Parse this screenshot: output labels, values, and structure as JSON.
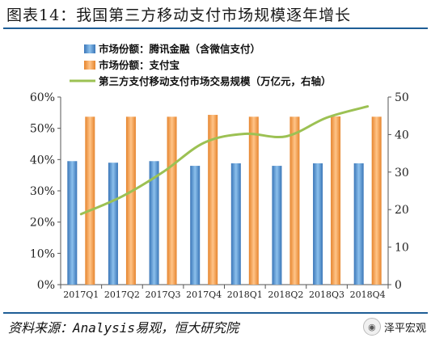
{
  "figure_title": "图表14：我国第三方移动支付市场规模逐年增长",
  "source": "资料来源：Analysis易观，恒大研究院",
  "watermark": {
    "text": "泽平宏观",
    "icon": "wechat-icon"
  },
  "colors": {
    "tenpay": "#4f8fd0",
    "alipay": "#f39a4a",
    "volume": "#9cc153",
    "rule": "#1f5e96"
  },
  "chart_data": {
    "type": "bar",
    "title": "",
    "categories": [
      "2017Q1",
      "2017Q2",
      "2017Q3",
      "2017Q4",
      "2018Q1",
      "2018Q2",
      "2018Q3",
      "2018Q4"
    ],
    "series": [
      {
        "name": "市场份额：腾讯金融（含微信支付）",
        "type": "bar",
        "axis": "left",
        "values": [
          39.5,
          39.0,
          39.5,
          38.0,
          38.8,
          38.0,
          38.8,
          38.8
        ]
      },
      {
        "name": "市场份额：支付宝",
        "type": "bar",
        "axis": "left",
        "values": [
          53.7,
          53.7,
          53.7,
          54.3,
          53.7,
          53.7,
          53.8,
          53.7
        ]
      },
      {
        "name": "第三方支付移动支付市场交易规模（万亿元，右轴）",
        "type": "line",
        "axis": "right",
        "values": [
          18.8,
          23.5,
          30.0,
          37.8,
          40.2,
          39.5,
          44.5,
          47.5
        ]
      }
    ],
    "y_left": {
      "ticks": [
        "0%",
        "10%",
        "20%",
        "30%",
        "40%",
        "50%",
        "60%"
      ],
      "range": [
        0,
        60
      ]
    },
    "y_right": {
      "ticks": [
        "0",
        "10",
        "20",
        "30",
        "40",
        "50"
      ],
      "range": [
        0,
        50
      ]
    },
    "xlabel": "",
    "ylabel": "",
    "grid": false,
    "legend_position": "top-left"
  }
}
